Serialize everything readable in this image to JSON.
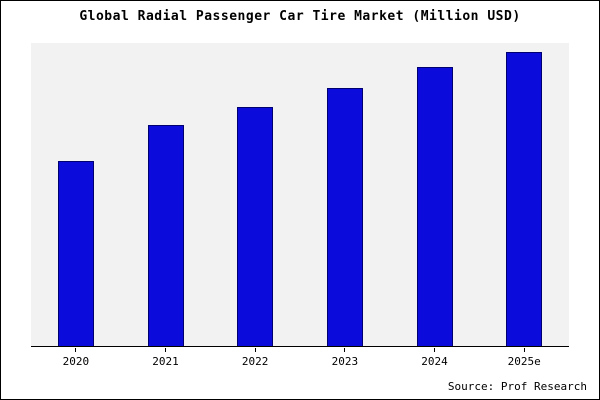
{
  "title": "Global Radial Passenger Car Tire Market (Million USD)",
  "source": "Source: Prof Research",
  "colors": {
    "bar": "#0b0bdb",
    "bar_edge": "#000070",
    "plot_bg": "#f2f2f2",
    "frame_border": "#000000"
  },
  "chart_data": {
    "type": "bar",
    "title": "Global Radial Passenger Car Tire Market (Million USD)",
    "categories": [
      "2020",
      "2021",
      "2022",
      "2023",
      "2024",
      "2025e"
    ],
    "values": [
      61,
      73,
      79,
      85,
      92,
      97
    ],
    "xlabel": "",
    "ylabel": "",
    "ylim": [
      0,
      100
    ],
    "grid": false,
    "legend": false,
    "annotation": "Source: Prof Research"
  }
}
